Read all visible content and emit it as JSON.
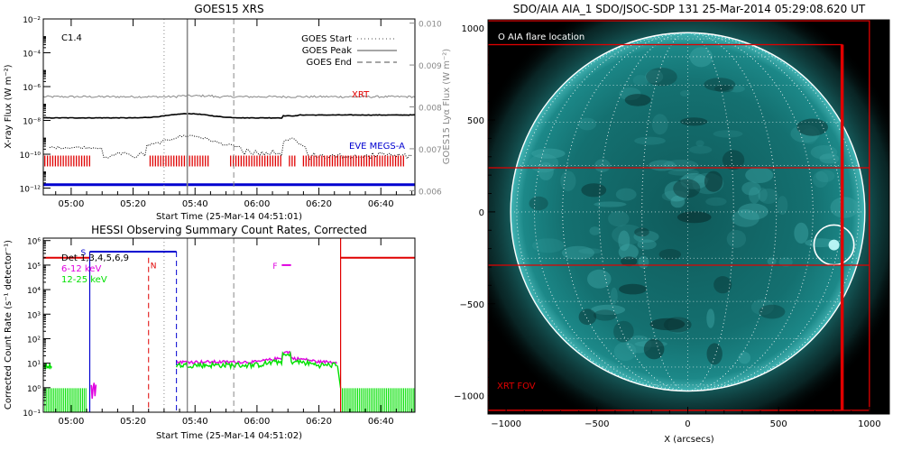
{
  "colors": {
    "red": "#e00000",
    "blue": "#0000d0",
    "magenta": "#e000e0",
    "green": "#00e000",
    "gray": "#888888",
    "black": "#000000",
    "sun_bg": "#000000"
  },
  "chart_data": [
    {
      "id": "goes",
      "type": "line",
      "title": "GOES15 XRS",
      "xlabel": "Start Time (25-Mar-14 04:51:01)",
      "ylabel": "X-ray Flux (W m⁻²)",
      "y2label": "GOES15 Lyα Flux (W m⁻²)",
      "x_tick_labels": [
        "05:00",
        "05:20",
        "05:40",
        "06:00",
        "06:20",
        "06:40"
      ],
      "x_ticks_min": [
        0,
        20,
        40,
        60,
        80,
        100
      ],
      "xlim_min": [
        -9,
        111
      ],
      "y_log_exponents": [
        -12,
        -10,
        -8,
        -6,
        -4,
        -2
      ],
      "y_tick_labels": [
        "10⁻¹²",
        "10⁻¹⁰",
        "10⁻⁸",
        "10⁻⁶",
        "10⁻⁴",
        "10⁻²"
      ],
      "y2_ticks": [
        0.006,
        0.007,
        0.008,
        0.009,
        0.01
      ],
      "y2_tick_labels": [
        "0.006",
        "0.007",
        "0.008",
        "0.009",
        "0.010"
      ],
      "class_label": "C1.4",
      "legend": [
        {
          "label": "GOES Start",
          "style": "dotted"
        },
        {
          "label": "GOES Peak",
          "style": "solid"
        },
        {
          "label": "GOES End",
          "style": "dashed"
        }
      ],
      "markers_min": {
        "start": 30,
        "peak": 37.5,
        "end": 52.5
      },
      "series_labels": {
        "xrt": "XRT",
        "eve": "EVE MEGS-A"
      },
      "long_channel": {
        "log_base": -7.85
      },
      "lya_level_log": -6.6,
      "short_channel": {
        "log_base": -9.6
      },
      "xrt_intervals_min": [
        [
          -8.5,
          6
        ],
        [
          25.5,
          45
        ],
        [
          51.5,
          68
        ],
        [
          70.5,
          72.5
        ],
        [
          75,
          108
        ]
      ],
      "xrt_log": -10.4,
      "eve_log": -11.8
    },
    {
      "id": "hessi",
      "type": "line",
      "title": "HESSI Observing Summary Count Rates, Corrected",
      "xlabel": "Start Time (25-Mar-14 04:51:02)",
      "ylabel": "Corrected Count Rate (s⁻¹ detector⁻¹)",
      "x_tick_labels": [
        "05:00",
        "05:20",
        "05:40",
        "06:00",
        "06:20",
        "06:40"
      ],
      "x_ticks_min": [
        0,
        20,
        40,
        60,
        80,
        100
      ],
      "xlim_min": [
        -9,
        111
      ],
      "y_log_exponents": [
        -1,
        0,
        1,
        2,
        3,
        4,
        5,
        6
      ],
      "y_tick_labels": [
        "10⁻¹",
        "10⁰",
        "10¹",
        "10²",
        "10³",
        "10⁴",
        "10⁵",
        "10⁶"
      ],
      "legend": [
        {
          "label": "Det 1,3,4,5,6,9",
          "color": "black"
        },
        {
          "label": "6-12 keV",
          "color": "magenta"
        },
        {
          "label": "12-25 keV",
          "color": "green"
        }
      ],
      "flags": {
        "saa": "S",
        "night": "N",
        "flare": "F"
      },
      "night_intervals_min": [
        [
          -9,
          6
        ],
        [
          87,
          111
        ]
      ],
      "saa_interval_min": [
        6,
        34
      ],
      "saa_log": 5.55,
      "night_log": 5.3,
      "markers_min": {
        "saa_start": 6,
        "saa_end": 34,
        "night_dash": 25,
        "goes_start": 30,
        "goes_peak": 37.5,
        "goes_end": 52.5,
        "data_start": 34,
        "night2_start": 87
      },
      "flare_bar_min": [
        68,
        71
      ],
      "flare_bar_log": 5.0,
      "green_level_log": 0.95,
      "magenta_level_log": 1.05,
      "green_block_log": -0.02
    },
    {
      "id": "aia",
      "type": "image",
      "title": "SDO/AIA AIA_1 SDO/JSOC-SDP 131 25-Mar-2014 05:29:08.620 UT",
      "xlabel": "X (arcsecs)",
      "ylabel": "Y (arcsecs)",
      "x_ticks": [
        -1000,
        -500,
        0,
        500,
        1000
      ],
      "x_tick_labels": [
        "−1000",
        "−500",
        "0",
        "500",
        "1000"
      ],
      "y_ticks": [
        -1000,
        -500,
        0,
        500,
        1000
      ],
      "y_tick_labels": [
        "−1000",
        "−500",
        "0",
        "500",
        "1000"
      ],
      "xlim": [
        -1100,
        1110
      ],
      "ylim": [
        -1100,
        1045
      ],
      "solar_radius_arcsec": 975,
      "flare_location": [
        805,
        -180
      ],
      "flare_circle_radius": 110,
      "annotations": {
        "flare_location": "O AIA flare location",
        "xrt_fov": "XRT FOV"
      },
      "xrt_fov_outer": {
        "x": [
          -1110,
          1000
        ],
        "y": [
          -1080,
          1040
        ]
      },
      "xrt_fov_inner": {
        "x": [
          -1100,
          850
        ],
        "y": [
          -1080,
          910
        ]
      },
      "xrt_fov_lines_y": [
        240,
        -290
      ]
    }
  ]
}
